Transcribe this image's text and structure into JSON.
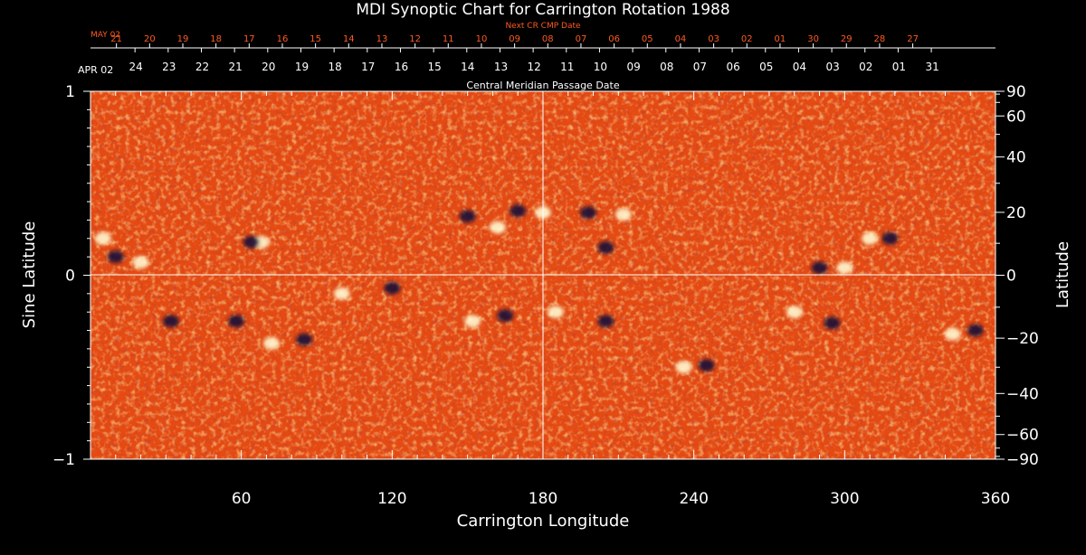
{
  "chart_data": {
    "type": "heatmap",
    "title": "MDI Synoptic Chart for Carrington Rotation 1988",
    "xlabel": "Carrington Longitude",
    "ylabel_left": "Sine Latitude",
    "ylabel_right": "Latitude",
    "top_axis_title": "Central Meridian Passage Date",
    "next_cr_axis_title": "Next CR CMP Date",
    "x_range": [
      0,
      360
    ],
    "x_ticks": [
      60,
      120,
      180,
      240,
      300,
      360
    ],
    "x_tick_labels": [
      "60",
      "120",
      "180",
      "240",
      "300",
      "360"
    ],
    "y_left_range": [
      -1,
      1
    ],
    "y_left_ticks": [
      1,
      0,
      -1
    ],
    "y_left_tick_labels": [
      "1",
      "0",
      "−1"
    ],
    "y_right_ticks": [
      90,
      60,
      40,
      20,
      0,
      -20,
      -40,
      -60,
      -90
    ],
    "y_right_tick_labels": [
      "90",
      "60",
      "40",
      "20",
      "0",
      "−20",
      "−40",
      "−60",
      "−90"
    ],
    "cmp_dates": {
      "month_label": "APR 02",
      "days": [
        "24",
        "23",
        "22",
        "21",
        "20",
        "19",
        "18",
        "17",
        "16",
        "15",
        "14",
        "13",
        "12",
        "11",
        "10",
        "09",
        "08",
        "07",
        "06",
        "05",
        "04",
        "03",
        "02",
        "01",
        "31"
      ]
    },
    "next_cr_dates": {
      "month_label": "MAY 02",
      "days": [
        "21",
        "20",
        "19",
        "18",
        "17",
        "16",
        "15",
        "14",
        "13",
        "12",
        "11",
        "10",
        "09",
        "08",
        "07",
        "06",
        "05",
        "04",
        "03",
        "02",
        "01",
        "30",
        "29",
        "28",
        "27"
      ]
    },
    "colors": {
      "background": "#000000",
      "map_base": "#e84a10",
      "positive_flux": "#fff6c8",
      "negative_flux": "#1a1040",
      "next_cr_text": "#ff5a20",
      "axis_text": "#ffffff"
    },
    "grid": false,
    "crosshair_lines": {
      "longitude": 180,
      "sine_latitude": 0
    }
  }
}
